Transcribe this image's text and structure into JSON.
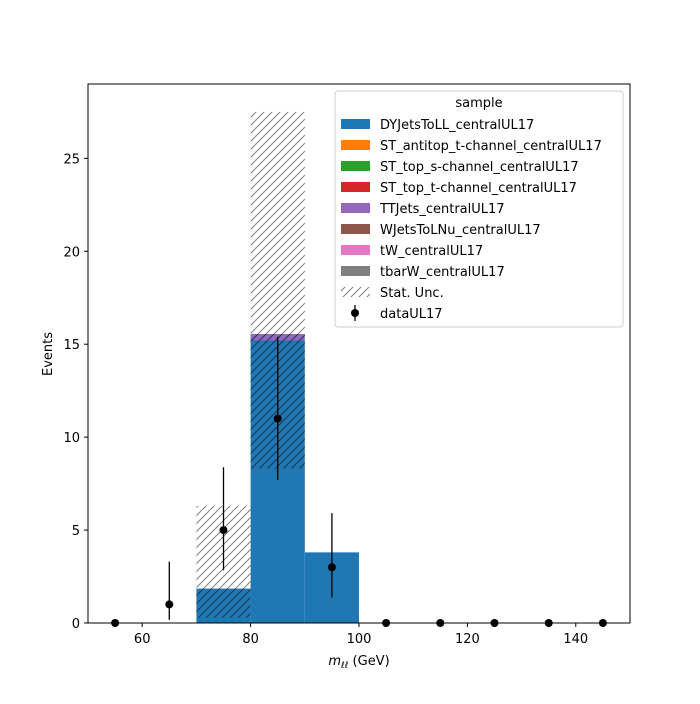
{
  "chart_data": {
    "type": "bar",
    "stacked": true,
    "xlabel_main": "m",
    "xlabel_sub": "ℓℓ",
    "xlabel_unit": " (GeV)",
    "ylabel": "Events",
    "xlim": [
      50,
      150
    ],
    "ylim": [
      0,
      29
    ],
    "xticks": [
      "60",
      "80",
      "100",
      "120",
      "140"
    ],
    "yticks": [
      "0",
      "5",
      "10",
      "15",
      "20",
      "25"
    ],
    "xtick_values": [
      60,
      80,
      100,
      120,
      140
    ],
    "ytick_values": [
      0,
      5,
      10,
      15,
      20,
      25
    ],
    "bin_edges": [
      50,
      60,
      70,
      80,
      90,
      100,
      110,
      120,
      130,
      140,
      150
    ],
    "series": [
      {
        "name": "DYJetsToLL_centralUL17",
        "color": "#1f77b4",
        "values": [
          0,
          0,
          1.85,
          15.2,
          3.8,
          0,
          0,
          0,
          0,
          0
        ]
      },
      {
        "name": "ST_antitop_t-channel_centralUL17",
        "color": "#ff7f0e",
        "values": [
          0,
          0,
          0,
          0,
          0,
          0,
          0,
          0,
          0,
          0
        ]
      },
      {
        "name": "ST_top_s-channel_centralUL17",
        "color": "#2ca02c",
        "values": [
          0,
          0,
          0,
          0,
          0,
          0,
          0,
          0,
          0,
          0
        ]
      },
      {
        "name": "ST_top_t-channel_centralUL17",
        "color": "#d62728",
        "values": [
          0,
          0,
          0,
          0,
          0,
          0,
          0,
          0,
          0,
          0
        ]
      },
      {
        "name": "TTJets_centralUL17",
        "color": "#9467bd",
        "values": [
          0,
          0,
          0,
          0.35,
          0,
          0,
          0,
          0,
          0,
          0
        ]
      },
      {
        "name": "WJetsToLNu_centralUL17",
        "color": "#8c564b",
        "values": [
          0,
          0,
          0,
          0,
          0,
          0,
          0,
          0,
          0,
          0
        ]
      },
      {
        "name": "tW_centralUL17",
        "color": "#e377c2",
        "values": [
          0,
          0,
          0,
          0,
          0,
          0,
          0,
          0,
          0,
          0
        ]
      },
      {
        "name": "tbarW_centralUL17",
        "color": "#7f7f7f",
        "values": [
          0,
          0,
          0,
          0,
          0,
          0,
          0,
          0,
          0,
          0
        ]
      }
    ],
    "stat_unc": {
      "name": "Stat. Unc.",
      "bands": [
        {
          "bin": 2,
          "low": 0.3,
          "high": 6.3
        },
        {
          "bin": 3,
          "low": 8.3,
          "high": 27.5
        }
      ]
    },
    "data_points": {
      "name": "dataUL17",
      "x": [
        55,
        65,
        75,
        85,
        95,
        105,
        115,
        125,
        135,
        145
      ],
      "y": [
        0,
        1,
        5,
        11,
        3,
        0,
        0,
        0,
        0,
        0
      ],
      "err_low": [
        0,
        0.83,
        2.16,
        3.3,
        1.63,
        0,
        0,
        0,
        0,
        0
      ],
      "err_high": [
        0,
        2.3,
        3.38,
        4.4,
        2.91,
        0,
        0,
        0,
        0,
        0
      ]
    },
    "legend": {
      "title": "sample",
      "location": "upper right"
    }
  }
}
